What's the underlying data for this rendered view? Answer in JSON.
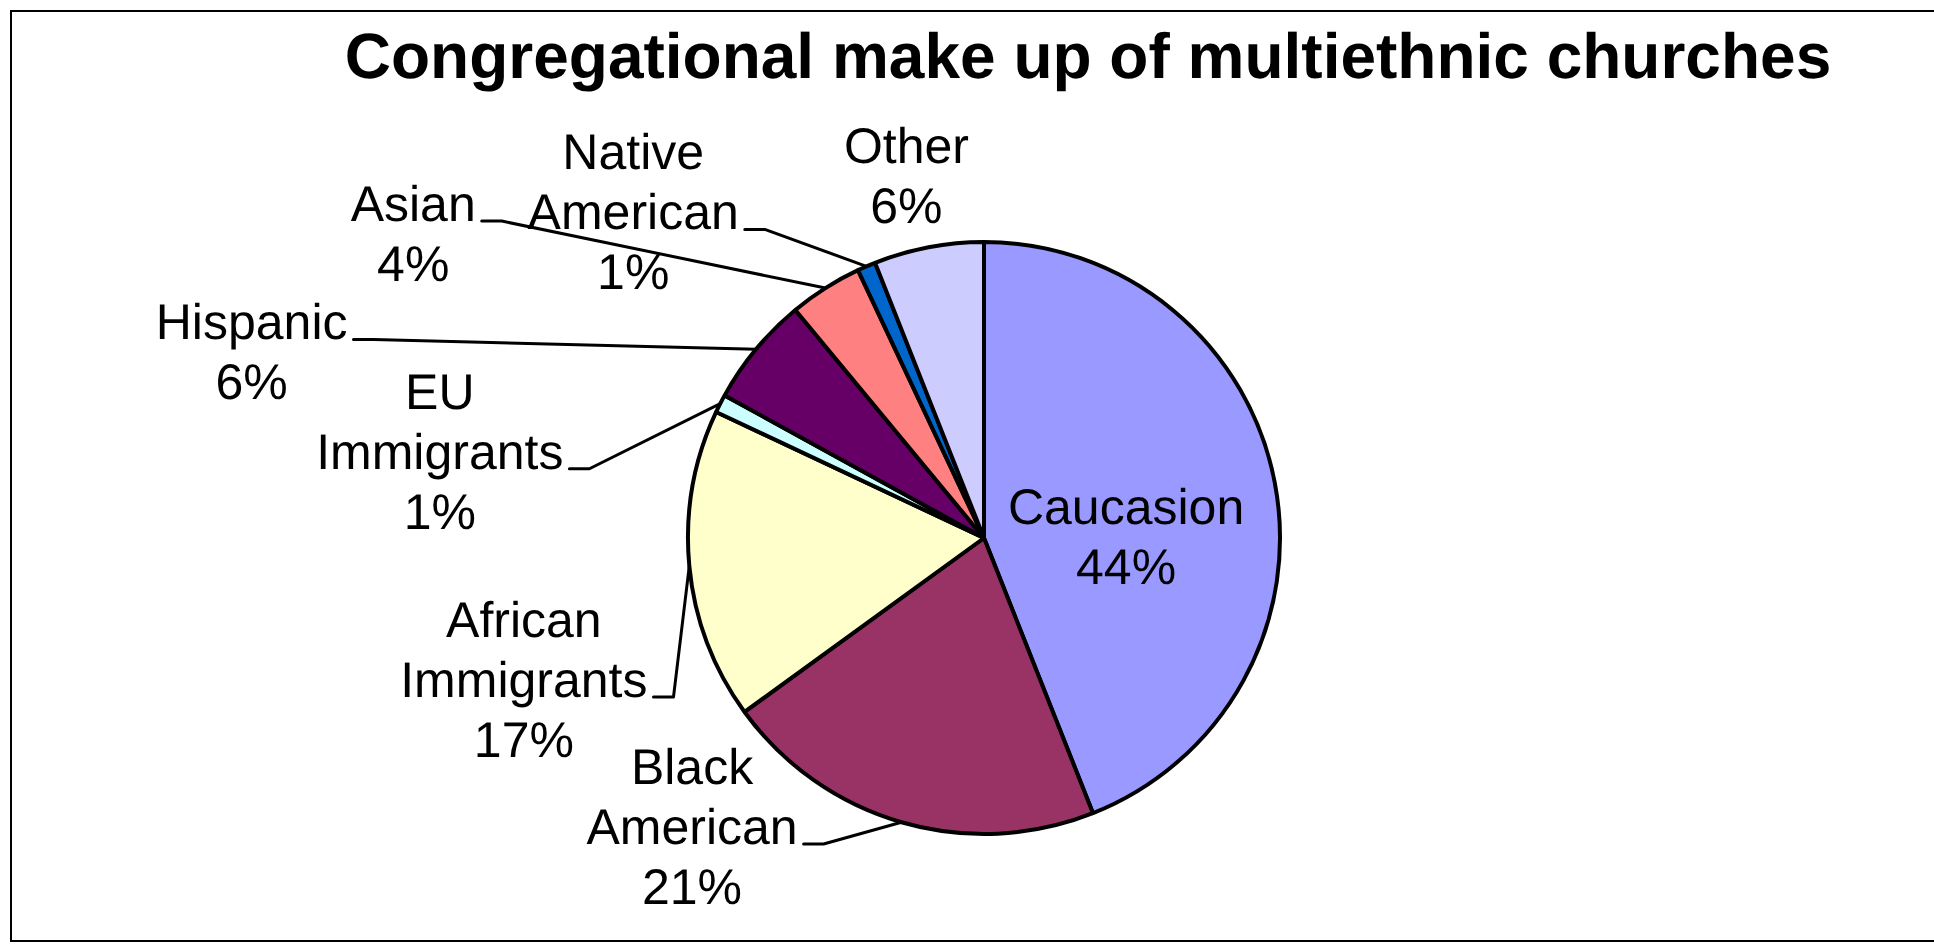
{
  "chart_data": {
    "type": "pie",
    "title": "Congregational make up of multiethnic churches",
    "categories": [
      "Caucasion",
      "Black American",
      "African Immigrants",
      "EU Immigrants",
      "Hispanic",
      "Asian",
      "Native American",
      "Other"
    ],
    "values": [
      44,
      21,
      17,
      1,
      6,
      4,
      1,
      6
    ],
    "colors": [
      "#9999ff",
      "#993366",
      "#ffffcc",
      "#ccffff",
      "#660066",
      "#ff8080",
      "#0066cc",
      "#ccccff"
    ],
    "value_labels": [
      "44%",
      "21%",
      "17%",
      "1%",
      "6%",
      "4%",
      "1%",
      "6%"
    ]
  }
}
